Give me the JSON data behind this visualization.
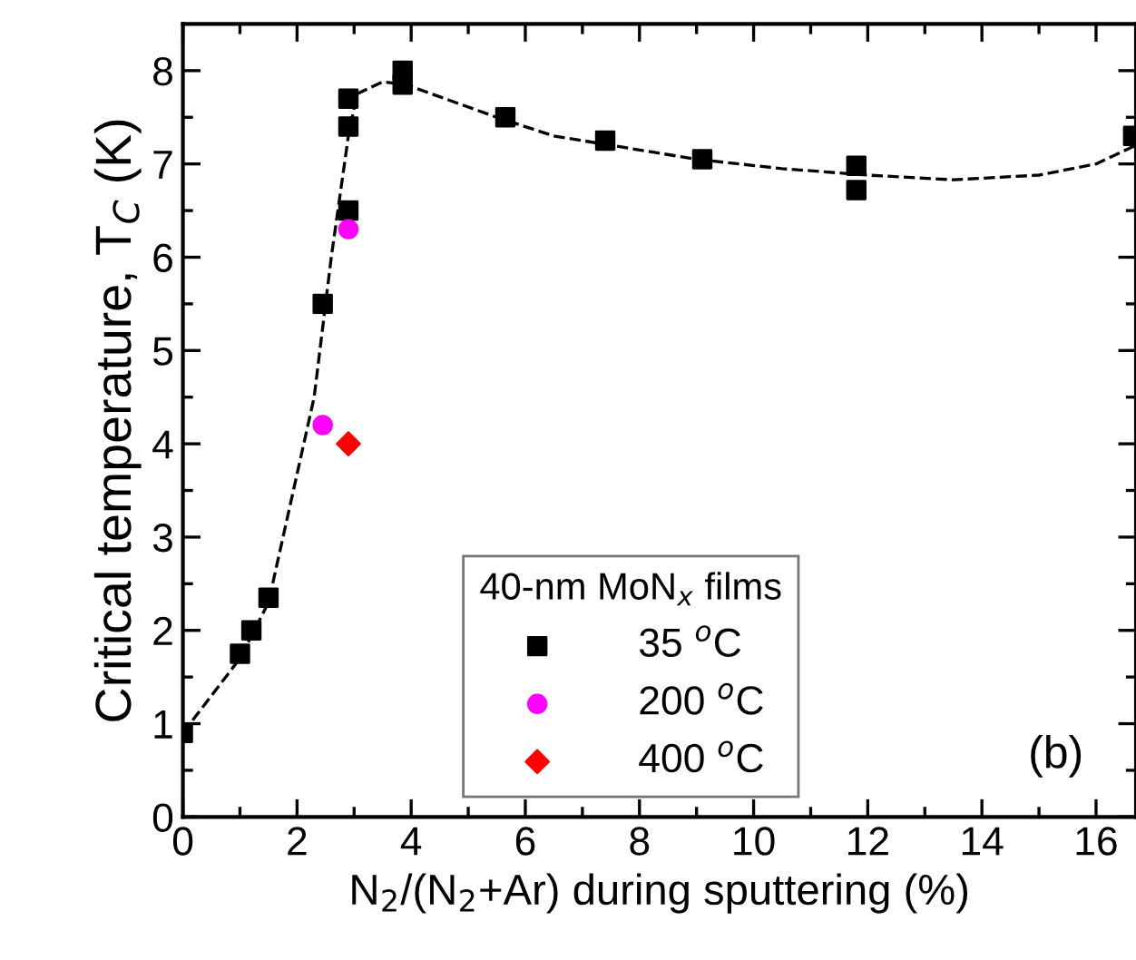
{
  "chart_data": {
    "type": "scatter",
    "xlabel": "N$_{2}$/(N$_{2}$+Ar) during sputtering (%)",
    "ylabel": "Critical temperature, T$_{C}$ (K)",
    "legend_title": "40-nm MoN$_{x}$ films",
    "series": [
      {
        "name": "35 $^{o}$C",
        "color": "#000000",
        "marker": "square",
        "x": [
          0,
          1.0,
          1.2,
          1.5,
          2.45,
          2.9,
          2.9,
          2.9,
          3.85,
          3.85,
          5.65,
          7.4,
          9.1,
          11.8,
          11.8,
          16.65
        ],
        "values": [
          0.9,
          1.75,
          2.0,
          2.35,
          5.5,
          6.5,
          7.4,
          7.7,
          7.85,
          8.0,
          7.5,
          7.25,
          7.05,
          6.72,
          6.98,
          7.3
        ]
      },
      {
        "name": "200 $^{o}$C",
        "color": "#ff00ff",
        "marker": "circle",
        "x": [
          2.45,
          2.9
        ],
        "values": [
          4.2,
          6.3
        ]
      },
      {
        "name": "400 $^{o}$C",
        "color": "#ff0000",
        "marker": "diamond",
        "x": [
          2.9
        ],
        "values": [
          4.0
        ]
      },
      {
        "type": "line",
        "color": "#000000",
        "line_style": "dashed",
        "marker": "none",
        "x": [
          0,
          1.0,
          1.5,
          2.3,
          2.6,
          2.9,
          3.05,
          3.5,
          3.9,
          4.5,
          5.5,
          6.5,
          7.5,
          9,
          10.5,
          12,
          13.5,
          15,
          16,
          16.7
        ],
        "values": [
          0.9,
          1.7,
          2.3,
          4.5,
          6.0,
          7.3,
          7.75,
          7.88,
          7.85,
          7.72,
          7.5,
          7.3,
          7.2,
          7.05,
          6.95,
          6.88,
          6.83,
          6.88,
          7.0,
          7.2
        ]
      }
    ],
    "xlim": [
      0,
      16.7
    ],
    "ylim": [
      0,
      8.5
    ],
    "xticks": [
      0,
      2,
      4,
      6,
      8,
      10,
      12,
      14,
      16
    ],
    "yticks": [
      0,
      1,
      2,
      3,
      4,
      5,
      6,
      7,
      8
    ],
    "legend": "bottom",
    "grid": false,
    "annotations": [
      "(b)"
    ]
  }
}
